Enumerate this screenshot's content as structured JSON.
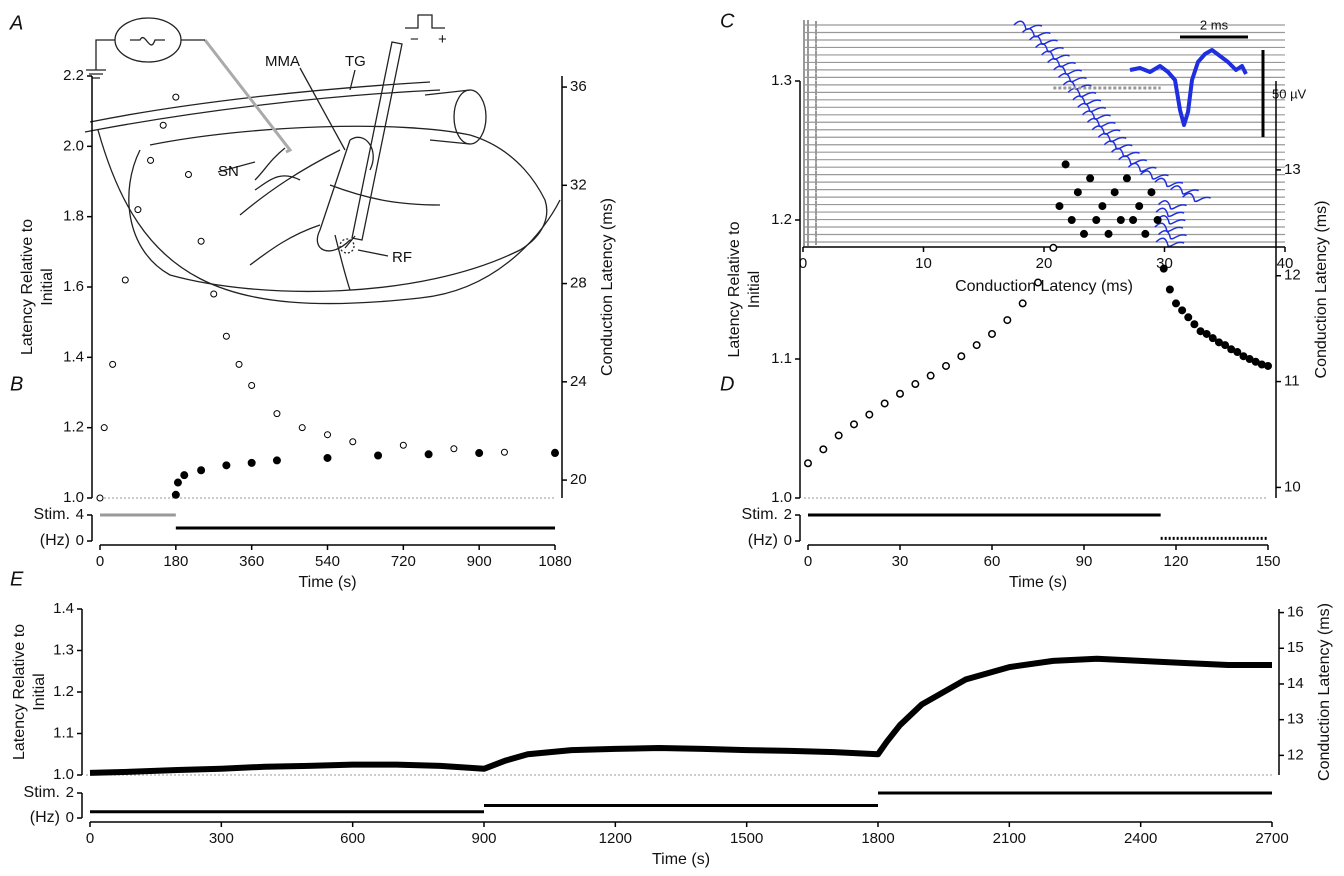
{
  "diagram": {
    "panel": "A",
    "labels": [
      "MMA",
      "TG",
      "SN",
      "RF"
    ],
    "signs": [
      "−",
      "+"
    ]
  },
  "chart_data": [
    {
      "type": "scatter",
      "panel": "B",
      "xlabel": "Time (s)",
      "ylabel": [
        "Latency Relative to",
        "Initial"
      ],
      "y2label": "Conduction Latency (ms)",
      "xlim": [
        0,
        1080
      ],
      "xticks": [
        0,
        180,
        360,
        540,
        720,
        900,
        1080
      ],
      "ylim": [
        1.0,
        2.2
      ],
      "yticks": [
        {
          "value": 1.0,
          "label": "1.0"
        },
        1.2,
        1.4,
        1.6,
        1.8,
        {
          "value": 2.0,
          "label": "2.0"
        },
        2.2
      ],
      "y2lim": [
        19.27,
        36.45
      ],
      "y2ticks": [
        20,
        24,
        28,
        32,
        36
      ],
      "series": [
        {
          "color": "#000000",
          "marker": "open",
          "x": [
            0,
            10,
            30,
            60,
            90,
            120,
            150,
            180,
            210,
            240,
            270,
            300,
            330,
            360,
            420,
            480,
            540,
            600,
            720,
            840,
            960,
            1080
          ],
          "values": [
            1.0,
            1.2,
            1.38,
            1.62,
            1.82,
            1.96,
            2.06,
            2.14,
            1.92,
            1.73,
            1.58,
            1.46,
            1.38,
            1.32,
            1.24,
            1.2,
            1.18,
            1.16,
            1.15,
            1.14,
            1.13,
            1.13
          ]
        },
        {
          "color": "#000000",
          "marker": "filled",
          "axis": "y2",
          "x": [
            180,
            185,
            200,
            240,
            300,
            360,
            420,
            540,
            660,
            780,
            900,
            1080
          ],
          "values": [
            19.4,
            19.9,
            20.2,
            20.4,
            20.6,
            20.7,
            20.8,
            20.9,
            21.0,
            21.05,
            21.1,
            21.1
          ]
        }
      ],
      "stim": {
        "label": [
          "Stim.",
          "(Hz)"
        ],
        "ylim": [
          0,
          4
        ],
        "yticks": [
          4,
          0
        ],
        "segments": [
          {
            "start": 0,
            "end": 180,
            "value": 4,
            "color": "#999999"
          },
          {
            "start": 180,
            "end": 1080,
            "value": 2,
            "color": "#000000"
          }
        ]
      }
    },
    {
      "type": "raster",
      "panel": "C",
      "xlabel": "Conduction Latency (ms)",
      "xlim": [
        0,
        40
      ],
      "xticks": [
        0,
        10,
        20,
        30,
        40
      ],
      "annotations": [
        "2 ms",
        "50 µV"
      ],
      "series": [
        {
          "color": "#1f2fe0",
          "values": [
            18.5,
            19.2,
            19.8,
            20.3,
            20.8,
            21.3,
            21.8,
            22.2,
            22.6,
            23.0,
            23.4,
            23.8,
            24.2,
            24.6,
            25.0,
            25.5,
            26.0,
            26.6,
            27.2,
            28.0,
            29.0,
            30.2,
            31.5,
            32.5,
            30.5,
            30.3,
            30.4,
            30.2,
            30.5,
            30.3
          ]
        }
      ]
    },
    {
      "type": "scatter",
      "panel": "D",
      "xlabel": "Time (s)",
      "ylabel": [
        "Latency Relative to",
        "Initial"
      ],
      "y2label": "Conduction Latency (ms)",
      "xlim": [
        0,
        150
      ],
      "xticks": [
        0,
        30,
        60,
        90,
        120,
        150
      ],
      "ylim": [
        1.0,
        1.3
      ],
      "yticks": [
        {
          "value": 1.0,
          "label": "1.0"
        },
        1.1,
        1.2,
        1.3
      ],
      "y2lim": [
        9.9,
        13.84
      ],
      "y2ticks": [
        10,
        11,
        12,
        13
      ],
      "series": [
        {
          "color": "#000000",
          "marker": "filled",
          "x": [
            0,
            5,
            10,
            15,
            20,
            25,
            30,
            35,
            40,
            45,
            50,
            55,
            60,
            65,
            70,
            75,
            80,
            82,
            84,
            86,
            88,
            90,
            92,
            94,
            96,
            98,
            100,
            102,
            104,
            106,
            108,
            110,
            112,
            114,
            116,
            118,
            120,
            122,
            124,
            126,
            128,
            130,
            132,
            134,
            136,
            138,
            140,
            142,
            144,
            146,
            148,
            150
          ],
          "values": [
            1.025,
            1.035,
            1.045,
            1.053,
            1.06,
            1.068,
            1.075,
            1.082,
            1.088,
            1.095,
            1.102,
            1.11,
            1.118,
            1.128,
            1.14,
            1.155,
            1.18,
            1.21,
            1.24,
            1.2,
            1.22,
            1.19,
            1.23,
            1.2,
            1.21,
            1.19,
            1.22,
            1.2,
            1.23,
            1.2,
            1.21,
            1.19,
            1.22,
            1.2,
            1.165,
            1.15,
            1.14,
            1.135,
            1.13,
            1.125,
            1.12,
            1.118,
            1.115,
            1.112,
            1.11,
            1.107,
            1.105,
            1.102,
            1.1,
            1.098,
            1.096,
            1.095
          ]
        },
        {
          "color": "#000000",
          "marker": "open",
          "x": [
            0,
            5,
            10,
            15,
            20,
            25,
            30,
            35,
            40,
            45,
            50,
            55,
            60,
            65,
            70,
            75,
            80
          ],
          "values": [
            1.025,
            1.035,
            1.045,
            1.053,
            1.06,
            1.068,
            1.075,
            1.082,
            1.088,
            1.095,
            1.102,
            1.11,
            1.118,
            1.128,
            1.14,
            1.155,
            1.18
          ]
        }
      ],
      "stim": {
        "label": [
          "Stim.",
          "(Hz)"
        ],
        "ylim": [
          0,
          2
        ],
        "yticks": [
          2,
          0
        ],
        "segments": [
          {
            "start": 0,
            "end": 115,
            "value": 2,
            "color": "#000000"
          },
          {
            "start": 115,
            "end": 150,
            "value": 0.2,
            "color": "#000000",
            "style": "dotted"
          }
        ]
      }
    },
    {
      "type": "line",
      "panel": "E",
      "xlabel": "Time (s)",
      "ylabel": [
        "Latency Relative to",
        "Initial"
      ],
      "y2label": "Conduction Latency (ms)",
      "xlim": [
        0,
        2700
      ],
      "xticks": [
        0,
        300,
        600,
        900,
        1200,
        1500,
        1800,
        2100,
        2400,
        2700
      ],
      "ylim": [
        1.0,
        1.4
      ],
      "yticks": [
        {
          "value": 1.0,
          "label": "1.0"
        },
        1.1,
        1.2,
        1.3,
        1.4
      ],
      "y2lim": [
        11.45,
        16.1
      ],
      "y2ticks": [
        12,
        13,
        14,
        15,
        16
      ],
      "series": [
        {
          "color": "#000000",
          "x": [
            0,
            100,
            200,
            300,
            400,
            500,
            600,
            700,
            800,
            900,
            950,
            1000,
            1100,
            1200,
            1300,
            1400,
            1500,
            1600,
            1700,
            1800,
            1820,
            1850,
            1900,
            2000,
            2100,
            2200,
            2300,
            2400,
            2500,
            2600,
            2700
          ],
          "values": [
            1.005,
            1.008,
            1.012,
            1.015,
            1.02,
            1.022,
            1.025,
            1.025,
            1.022,
            1.015,
            1.035,
            1.05,
            1.06,
            1.063,
            1.065,
            1.063,
            1.06,
            1.058,
            1.055,
            1.05,
            1.08,
            1.12,
            1.17,
            1.23,
            1.26,
            1.275,
            1.28,
            1.275,
            1.27,
            1.265,
            1.265
          ]
        }
      ],
      "stim": {
        "label": [
          "Stim.",
          "(Hz)"
        ],
        "ylim": [
          0,
          2
        ],
        "yticks": [
          2,
          0
        ],
        "segments": [
          {
            "start": 0,
            "end": 900,
            "value": 0.5,
            "color": "#000000"
          },
          {
            "start": 900,
            "end": 1800,
            "value": 1,
            "color": "#000000"
          },
          {
            "start": 1800,
            "end": 2700,
            "value": 2,
            "color": "#000000"
          }
        ]
      }
    }
  ]
}
